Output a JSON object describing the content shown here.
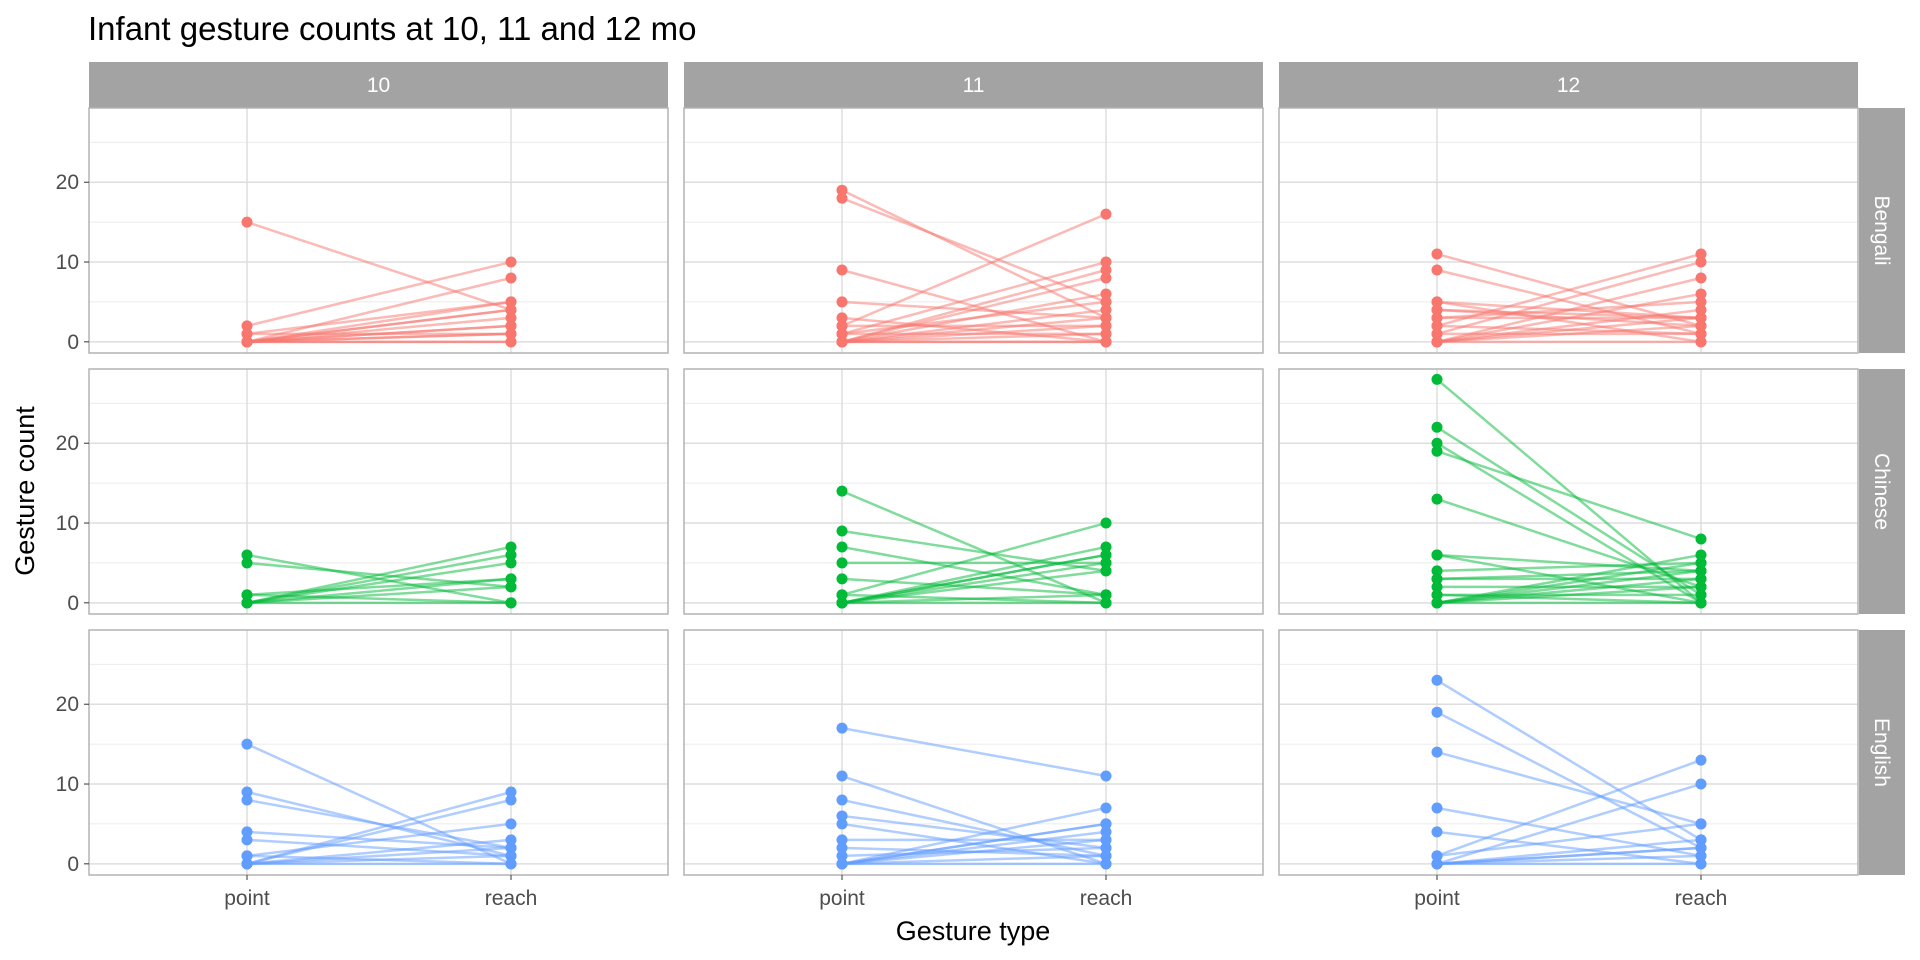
{
  "chart_data": {
    "type": "line",
    "title": "Infant gesture counts at 10, 11 and 12 mo",
    "xlabel": "Gesture type",
    "ylabel": "Gesture count",
    "x_categories": [
      "point",
      "reach"
    ],
    "y_ticks": [
      "0",
      "10",
      "20"
    ],
    "y_tick_values": [
      0,
      10,
      20
    ],
    "ylim": [
      -1.4,
      29.3
    ],
    "grid": true,
    "legend": "none",
    "facet_columns": [
      "10",
      "11",
      "12"
    ],
    "facet_rows": [
      "Bengali",
      "Chinese",
      "English"
    ],
    "row_colors": {
      "Bengali": "#F8766D",
      "Chinese": "#00BA38",
      "English": "#619CFF"
    },
    "strip_color": "#A3A3A3",
    "panels": [
      {
        "row": "Bengali",
        "col": "10",
        "pairs": [
          [
            15,
            4
          ],
          [
            2,
            10
          ],
          [
            0,
            8
          ],
          [
            1,
            5
          ],
          [
            0,
            5
          ],
          [
            0,
            4
          ],
          [
            0,
            4
          ],
          [
            0,
            3
          ],
          [
            0,
            2
          ],
          [
            1,
            1
          ],
          [
            0,
            1
          ],
          [
            0,
            0
          ],
          [
            0,
            0
          ],
          [
            0,
            2
          ],
          [
            0,
            1
          ]
        ]
      },
      {
        "row": "Bengali",
        "col": "11",
        "pairs": [
          [
            19,
            3
          ],
          [
            18,
            5
          ],
          [
            9,
            0
          ],
          [
            5,
            3
          ],
          [
            2,
            16
          ],
          [
            3,
            0
          ],
          [
            1,
            10
          ],
          [
            0,
            9
          ],
          [
            0,
            8
          ],
          [
            0,
            6
          ],
          [
            1,
            5
          ],
          [
            0,
            4
          ],
          [
            0,
            3
          ],
          [
            2,
            2
          ],
          [
            1,
            1
          ],
          [
            0,
            0
          ],
          [
            0,
            2
          ],
          [
            0,
            1
          ],
          [
            0,
            0
          ]
        ]
      },
      {
        "row": "Bengali",
        "col": "12",
        "pairs": [
          [
            11,
            2
          ],
          [
            9,
            1
          ],
          [
            5,
            3
          ],
          [
            5,
            0
          ],
          [
            4,
            2
          ],
          [
            4,
            3
          ],
          [
            3,
            5
          ],
          [
            2,
            11
          ],
          [
            1,
            10
          ],
          [
            0,
            8
          ],
          [
            0,
            6
          ],
          [
            0,
            4
          ],
          [
            0,
            3
          ],
          [
            1,
            1
          ],
          [
            0,
            2
          ],
          [
            0,
            0
          ],
          [
            3,
            3
          ],
          [
            2,
            1
          ]
        ]
      },
      {
        "row": "Chinese",
        "col": "10",
        "pairs": [
          [
            6,
            0
          ],
          [
            5,
            2
          ],
          [
            1,
            3
          ],
          [
            1,
            0
          ],
          [
            0,
            7
          ],
          [
            0,
            6
          ],
          [
            0,
            5
          ],
          [
            0,
            3
          ],
          [
            0,
            0
          ],
          [
            0,
            2
          ]
        ]
      },
      {
        "row": "Chinese",
        "col": "11",
        "pairs": [
          [
            14,
            0
          ],
          [
            9,
            4
          ],
          [
            7,
            1
          ],
          [
            5,
            5
          ],
          [
            3,
            1
          ],
          [
            1,
            10
          ],
          [
            1,
            0
          ],
          [
            0,
            7
          ],
          [
            0,
            6
          ],
          [
            0,
            6
          ],
          [
            0,
            5
          ],
          [
            0,
            4
          ],
          [
            0,
            0
          ],
          [
            0,
            1
          ]
        ]
      },
      {
        "row": "Chinese",
        "col": "12",
        "pairs": [
          [
            28,
            0
          ],
          [
            22,
            1
          ],
          [
            20,
            0
          ],
          [
            19,
            8
          ],
          [
            13,
            2
          ],
          [
            6,
            0
          ],
          [
            6,
            4
          ],
          [
            4,
            5
          ],
          [
            3,
            3
          ],
          [
            2,
            2
          ],
          [
            1,
            1
          ],
          [
            0,
            6
          ],
          [
            0,
            5
          ],
          [
            0,
            4
          ],
          [
            0,
            3
          ],
          [
            0,
            0
          ],
          [
            0,
            2
          ],
          [
            3,
            4
          ],
          [
            1,
            0
          ]
        ]
      },
      {
        "row": "English",
        "col": "10",
        "pairs": [
          [
            15,
            0
          ],
          [
            9,
            1
          ],
          [
            8,
            2
          ],
          [
            4,
            2
          ],
          [
            3,
            1
          ],
          [
            1,
            5
          ],
          [
            0,
            9
          ],
          [
            0,
            8
          ],
          [
            0,
            3
          ],
          [
            0,
            2
          ],
          [
            0,
            1
          ],
          [
            0,
            0
          ],
          [
            1,
            0
          ]
        ]
      },
      {
        "row": "English",
        "col": "11",
        "pairs": [
          [
            17,
            11
          ],
          [
            11,
            0
          ],
          [
            8,
            1
          ],
          [
            6,
            2
          ],
          [
            5,
            0
          ],
          [
            3,
            3
          ],
          [
            2,
            1
          ],
          [
            1,
            2
          ],
          [
            0,
            7
          ],
          [
            0,
            5
          ],
          [
            0,
            5
          ],
          [
            0,
            4
          ],
          [
            0,
            3
          ],
          [
            0,
            1
          ],
          [
            0,
            0
          ]
        ]
      },
      {
        "row": "English",
        "col": "12",
        "pairs": [
          [
            23,
            3
          ],
          [
            19,
            2
          ],
          [
            14,
            5
          ],
          [
            7,
            1
          ],
          [
            4,
            0
          ],
          [
            1,
            13
          ],
          [
            0,
            10
          ],
          [
            1,
            5
          ],
          [
            0,
            3
          ],
          [
            0,
            2
          ],
          [
            0,
            1
          ],
          [
            0,
            0
          ],
          [
            0,
            2
          ]
        ]
      }
    ]
  }
}
